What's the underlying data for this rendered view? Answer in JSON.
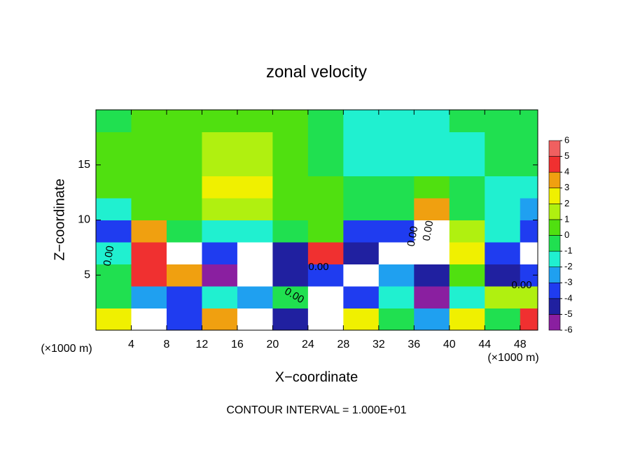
{
  "chart_data": {
    "type": "contour",
    "title": "zonal velocity",
    "x_label": "X−coordinate",
    "y_label": "Z−coordinate",
    "x_unit": "(×1000 m)",
    "x_unit_right": "(×1000 m)",
    "footer": "CONTOUR INTERVAL = 1.000E+01",
    "contour_labels": [
      "0.00",
      "0.00",
      "0.00",
      "0.00",
      "0.00",
      "0.00"
    ],
    "xlim": [
      0,
      50
    ],
    "ylim": [
      0,
      20
    ],
    "xticks": [
      4,
      8,
      12,
      16,
      20,
      24,
      28,
      32,
      36,
      40,
      44,
      48
    ],
    "yticks": [
      5,
      10,
      15
    ],
    "x": [
      2,
      6,
      10,
      14,
      18,
      22,
      26,
      30,
      34,
      38,
      42,
      46,
      50
    ],
    "y": [
      1,
      3,
      5,
      7,
      9,
      11,
      13,
      15,
      17,
      19
    ],
    "z": [
      [
        3,
        7,
        -3,
        4,
        7,
        -4,
        7,
        3,
        0,
        -2,
        3,
        0,
        5
      ],
      [
        0,
        -2,
        -3,
        -1,
        -2,
        0,
        7,
        -3,
        -1,
        -5,
        -1,
        2,
        2
      ],
      [
        0,
        5,
        4,
        -5,
        7,
        -4,
        -3,
        7,
        -2,
        -4,
        1,
        -4,
        -3
      ],
      [
        -1,
        5,
        7,
        -3,
        7,
        -4,
        5,
        -4,
        7,
        7,
        3,
        -3,
        7
      ],
      [
        -3,
        4,
        0,
        -1,
        -1,
        0,
        1,
        -3,
        -3,
        7,
        2,
        -1,
        -3
      ],
      [
        -1,
        0.5,
        1,
        1.5,
        1.5,
        1,
        0.5,
        -0.5,
        0,
        4,
        0,
        -1.5,
        -2
      ],
      [
        0.5,
        1,
        1,
        3,
        3,
        1,
        0.5,
        0,
        -0.5,
        1,
        0,
        -1,
        -1
      ],
      [
        0.5,
        1,
        1,
        2,
        2,
        1,
        0,
        -1,
        -1.5,
        -1,
        -1,
        -0.5,
        -0.5
      ],
      [
        0.5,
        1,
        1,
        1.5,
        1.5,
        1,
        0,
        -1,
        -1.5,
        -1.5,
        -1,
        -0.5,
        -0.5
      ],
      [
        0,
        0.5,
        0.5,
        1,
        1,
        0.5,
        0,
        -1,
        -1.5,
        -1,
        -0.5,
        -0.5,
        -0.5
      ]
    ],
    "levels": [
      -6,
      -5,
      -4,
      -3,
      -2,
      -1,
      0,
      1,
      2,
      3,
      4,
      5,
      6
    ],
    "colors": [
      "#8a1fa0",
      "#2020a0",
      "#1f3cf0",
      "#1fa0f0",
      "#20f0d0",
      "#20e050",
      "#50e010",
      "#b0f010",
      "#f0f000",
      "#f0a010",
      "#f03030",
      "#f06060"
    ]
  }
}
